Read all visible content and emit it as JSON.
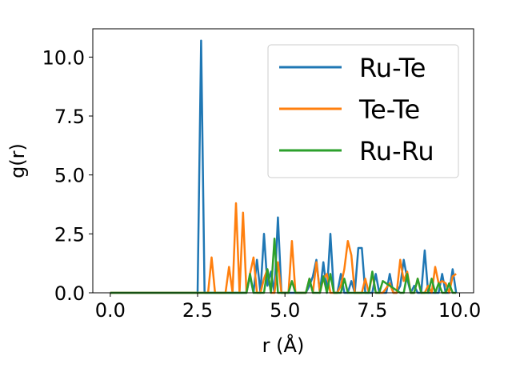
{
  "chart_data": {
    "type": "line",
    "title": "",
    "xlabel": "r (Å)",
    "ylabel": "g(r)",
    "xlim": [
      -0.5,
      10.4
    ],
    "ylim": [
      0,
      11.2
    ],
    "xticks": [
      0.0,
      2.5,
      5.0,
      7.5,
      10.0
    ],
    "xtick_labels": [
      "0.0",
      "2.5",
      "5.0",
      "7.5",
      "10.0"
    ],
    "yticks": [
      0.0,
      2.5,
      5.0,
      7.5,
      10.0
    ],
    "ytick_labels": [
      "0.0",
      "2.5",
      "5.0",
      "7.5",
      "10.0"
    ],
    "grid": false,
    "legend_position": "top-right",
    "series": [
      {
        "name": "Ru-Te",
        "color": "#1f77b4",
        "x": [
          0.0,
          2.4,
          2.5,
          2.6,
          2.7,
          2.8,
          3.7,
          3.8,
          3.9,
          4.0,
          4.1,
          4.2,
          4.3,
          4.4,
          4.5,
          4.6,
          4.7,
          4.8,
          4.9,
          5.0,
          5.1,
          5.6,
          5.7,
          5.8,
          5.9,
          6.0,
          6.1,
          6.2,
          6.3,
          6.4,
          6.5,
          6.6,
          6.7,
          6.8,
          6.9,
          7.0,
          7.1,
          7.2,
          7.3,
          7.4,
          7.5,
          7.6,
          7.7,
          7.8,
          7.9,
          8.0,
          8.1,
          8.2,
          8.3,
          8.4,
          8.5,
          8.6,
          8.7,
          8.8,
          8.9,
          9.0,
          9.1,
          9.2,
          9.3,
          9.4,
          9.5,
          9.6,
          9.7,
          9.8,
          9.9
        ],
        "values": [
          0.0,
          0.0,
          0.0,
          10.7,
          0.0,
          0.0,
          0.0,
          0.0,
          0.0,
          0.7,
          0.0,
          1.4,
          0.0,
          2.5,
          0.3,
          0.9,
          0.0,
          3.2,
          0.0,
          0.0,
          0.0,
          0.0,
          0.3,
          0.7,
          1.4,
          0.0,
          1.3,
          0.0,
          2.5,
          0.0,
          0.0,
          0.8,
          0.0,
          0.0,
          0.5,
          0.0,
          1.9,
          1.9,
          0.0,
          0.0,
          0.0,
          0.8,
          0.0,
          0.0,
          0.0,
          0.8,
          0.0,
          0.0,
          0.3,
          1.4,
          0.6,
          0.0,
          0.3,
          0.0,
          0.0,
          1.8,
          0.0,
          0.0,
          0.0,
          0.0,
          0.8,
          0.0,
          0.0,
          1.0,
          0.0
        ]
      },
      {
        "name": "Te-Te",
        "color": "#ff7f0e",
        "x": [
          0.0,
          2.7,
          2.8,
          2.9,
          3.0,
          3.3,
          3.4,
          3.5,
          3.6,
          3.7,
          3.8,
          3.9,
          4.0,
          4.1,
          4.2,
          4.3,
          4.4,
          4.5,
          4.6,
          4.7,
          4.8,
          4.9,
          5.0,
          5.1,
          5.2,
          5.3,
          5.4,
          5.5,
          5.6,
          5.7,
          5.8,
          5.9,
          6.0,
          6.1,
          6.2,
          6.3,
          6.4,
          6.5,
          6.6,
          6.7,
          6.8,
          6.9,
          7.0,
          7.1,
          7.2,
          7.3,
          7.4,
          7.5,
          7.6,
          7.7,
          7.8,
          7.9,
          8.0,
          8.1,
          8.2,
          8.3,
          8.4,
          8.5,
          8.6,
          8.7,
          8.8,
          8.9,
          9.0,
          9.1,
          9.2,
          9.3,
          9.4,
          9.5,
          9.6,
          9.7,
          9.8,
          9.9
        ],
        "values": [
          0.0,
          0.0,
          0.0,
          1.5,
          0.0,
          0.0,
          1.1,
          0.0,
          3.8,
          0.0,
          3.4,
          0.0,
          0.8,
          1.5,
          0.0,
          0.0,
          0.6,
          1.0,
          0.0,
          0.0,
          1.3,
          0.0,
          0.0,
          0.0,
          2.2,
          0.0,
          0.0,
          0.0,
          0.0,
          0.6,
          0.0,
          1.3,
          0.0,
          0.6,
          0.8,
          0.0,
          0.0,
          0.0,
          0.3,
          1.0,
          2.2,
          1.6,
          0.0,
          0.0,
          0.0,
          0.6,
          0.0,
          0.8,
          0.0,
          0.0,
          0.0,
          0.2,
          0.4,
          0.0,
          0.0,
          1.4,
          0.5,
          0.9,
          0.0,
          0.0,
          0.6,
          0.0,
          0.0,
          0.3,
          0.0,
          1.1,
          0.4,
          0.5,
          0.4,
          0.0,
          0.7,
          0.8
        ]
      },
      {
        "name": "Ru-Ru",
        "color": "#2ca02c",
        "x": [
          0.0,
          3.8,
          3.9,
          4.0,
          4.1,
          4.4,
          4.5,
          4.6,
          4.7,
          4.8,
          5.1,
          5.2,
          5.3,
          5.6,
          5.7,
          5.8,
          6.0,
          6.1,
          6.2,
          6.3,
          6.4,
          6.5,
          6.6,
          6.7,
          6.8,
          7.3,
          7.4,
          7.5,
          7.6,
          7.7,
          7.8,
          8.3,
          8.4,
          8.5,
          8.6,
          8.7,
          8.8,
          8.9,
          9.0,
          9.1,
          9.2,
          9.3,
          9.4,
          9.5,
          9.6,
          9.7,
          9.8,
          9.9
        ],
        "values": [
          0.0,
          0.0,
          0.0,
          0.8,
          0.0,
          0.0,
          1.0,
          0.0,
          2.3,
          0.0,
          0.0,
          0.5,
          0.0,
          0.0,
          0.6,
          0.0,
          0.0,
          0.7,
          0.0,
          0.8,
          0.0,
          0.0,
          0.0,
          0.6,
          0.0,
          0.0,
          0.0,
          0.9,
          0.0,
          0.0,
          0.5,
          0.0,
          0.0,
          0.8,
          0.0,
          0.0,
          0.6,
          0.0,
          0.0,
          0.0,
          0.6,
          0.0,
          0.4,
          0.0,
          0.0,
          0.4,
          0.0,
          0.0
        ]
      }
    ]
  }
}
